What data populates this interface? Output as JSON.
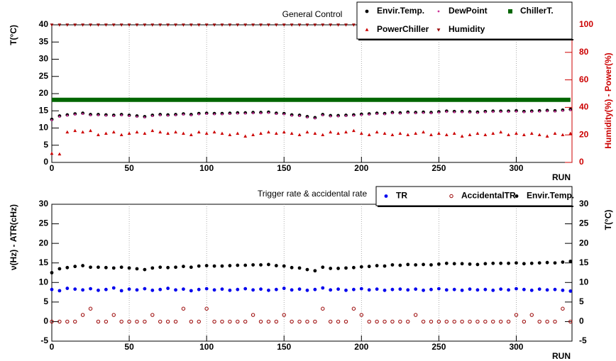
{
  "chart_data": [
    {
      "type": "scatter",
      "title": "General Control",
      "xlabel": "RUN",
      "ylabel": "T(°C)",
      "y2label": "Humidity(%) - Power(%)",
      "y2color": "#cc0000",
      "x": [
        0,
        5,
        10,
        15,
        20,
        25,
        30,
        35,
        40,
        45,
        50,
        55,
        60,
        65,
        70,
        75,
        80,
        85,
        90,
        95,
        100,
        105,
        110,
        115,
        120,
        125,
        130,
        135,
        140,
        145,
        150,
        155,
        160,
        165,
        170,
        175,
        180,
        185,
        190,
        195,
        200,
        205,
        210,
        215,
        220,
        225,
        230,
        235,
        240,
        245,
        250,
        255,
        260,
        265,
        270,
        275,
        280,
        285,
        290,
        295,
        300,
        305,
        310,
        315,
        320,
        325,
        330,
        335
      ],
      "xlim": [
        0,
        336
      ],
      "xticks": [
        0,
        50,
        100,
        150,
        200,
        250,
        300
      ],
      "ylim": [
        0,
        40
      ],
      "yticks": [
        0,
        5,
        10,
        15,
        20,
        25,
        30,
        35,
        40
      ],
      "y2lim": [
        0,
        100
      ],
      "y2ticks": [
        0,
        20,
        40,
        60,
        80,
        100
      ],
      "grid": true,
      "series": [
        {
          "name": "Envir.Temp.",
          "color": "#000000",
          "marker": "circle",
          "values": [
            12.5,
            13.5,
            13.8,
            14.1,
            14.3,
            13.9,
            13.9,
            13.8,
            13.7,
            13.9,
            13.7,
            13.5,
            13.3,
            13.7,
            13.9,
            13.8,
            13.9,
            14.1,
            13.9,
            14.2,
            14.3,
            14.2,
            14.2,
            14.3,
            14.4,
            14.4,
            14.5,
            14.5,
            14.6,
            14.3,
            14.2,
            13.8,
            13.7,
            13.3,
            13.0,
            13.9,
            13.6,
            13.6,
            13.7,
            13.8,
            14.0,
            14.1,
            14.3,
            14.2,
            14.5,
            14.4,
            14.6,
            14.5,
            14.6,
            14.5,
            14.7,
            14.9,
            14.8,
            14.8,
            14.7,
            14.6,
            14.8,
            14.9,
            14.9,
            14.9,
            15.0,
            14.8,
            14.9,
            15.0,
            15.1,
            15.0,
            15.2,
            15.4
          ]
        },
        {
          "name": "DewPoint",
          "color": "#cc3399",
          "marker": "dot",
          "values": [
            12.3,
            13.3,
            13.6,
            13.9,
            14.1,
            13.7,
            13.7,
            13.6,
            13.5,
            13.7,
            13.5,
            13.3,
            13.1,
            13.5,
            13.7,
            13.6,
            13.7,
            13.9,
            13.7,
            14.0,
            14.1,
            14.0,
            14.0,
            14.1,
            14.2,
            14.2,
            14.3,
            14.3,
            14.4,
            14.1,
            14.0,
            13.6,
            13.5,
            13.1,
            12.8,
            13.7,
            13.4,
            13.4,
            13.5,
            13.6,
            13.8,
            13.9,
            14.1,
            14.0,
            14.3,
            14.2,
            14.4,
            14.3,
            14.4,
            14.3,
            14.5,
            14.7,
            14.6,
            14.6,
            14.5,
            14.4,
            14.6,
            14.7,
            14.7,
            14.7,
            14.8,
            14.6,
            14.7,
            14.8,
            14.9,
            14.8,
            15.0,
            15.2
          ]
        },
        {
          "name": "ChillerT.",
          "color": "#006600",
          "marker": "square",
          "connect": true,
          "values": [
            18.2,
            18.2,
            18.2,
            18.2,
            18.2,
            18.2,
            18.2,
            18.2,
            18.2,
            18.2,
            18.2,
            18.2,
            18.2,
            18.2,
            18.2,
            18.2,
            18.2,
            18.2,
            18.2,
            18.2,
            18.2,
            18.2,
            18.2,
            18.2,
            18.2,
            18.2,
            18.2,
            18.2,
            18.2,
            18.2,
            18.2,
            18.2,
            18.2,
            18.2,
            18.2,
            18.2,
            18.2,
            18.2,
            18.2,
            18.2,
            18.2,
            18.2,
            18.2,
            18.2,
            18.2,
            18.2,
            18.2,
            18.2,
            18.2,
            18.2,
            18.2,
            18.2,
            18.2,
            18.2,
            18.2,
            18.2,
            18.2,
            18.2,
            18.2,
            18.2,
            18.2,
            18.2,
            18.2,
            18.2,
            18.2,
            18.2,
            18.2,
            18.2
          ]
        },
        {
          "name": "PowerChiller",
          "color": "#cc0000",
          "marker": "triangle-up",
          "axis": "y2",
          "values": [
            6.5,
            6.0,
            22,
            23,
            22,
            23,
            20,
            21,
            22,
            20,
            21,
            22,
            21,
            23,
            22,
            21,
            22,
            21,
            20,
            22,
            21,
            22,
            21,
            20,
            21,
            19,
            20,
            21,
            22,
            21,
            22,
            21,
            20,
            22,
            21,
            20,
            22,
            21,
            22,
            23,
            21,
            20,
            22,
            21,
            20,
            21,
            20,
            21,
            22,
            20,
            21,
            20,
            21,
            19,
            20,
            21,
            20,
            21,
            22,
            20,
            21,
            20,
            21,
            20,
            19,
            21,
            20,
            21
          ]
        },
        {
          "name": "Humidity",
          "color": "#990000",
          "marker": "triangle-down",
          "axis": "y2",
          "values": [
            100,
            100,
            100,
            100,
            100,
            100,
            100,
            100,
            100,
            100,
            100,
            100,
            100,
            100,
            100,
            100,
            100,
            100,
            100,
            100,
            100,
            100,
            100,
            100,
            100,
            100,
            100,
            100,
            100,
            100,
            100,
            100,
            100,
            100,
            100,
            100,
            100,
            100,
            100,
            100,
            100,
            100,
            100,
            100,
            100,
            100,
            100,
            100,
            100,
            100,
            100,
            100,
            100,
            100,
            100,
            100,
            100,
            100,
            100,
            100,
            100,
            100,
            100,
            100,
            100,
            100,
            100,
            100
          ]
        }
      ]
    },
    {
      "type": "scatter",
      "title": "Trigger rate & accidental rate",
      "xlabel": "RUN",
      "ylabel": "ν(Hz) - ATR(cHz)",
      "y2label": "T(°C)",
      "y2color": "#000000",
      "x": [
        0,
        5,
        10,
        15,
        20,
        25,
        30,
        35,
        40,
        45,
        50,
        55,
        60,
        65,
        70,
        75,
        80,
        85,
        90,
        95,
        100,
        105,
        110,
        115,
        120,
        125,
        130,
        135,
        140,
        145,
        150,
        155,
        160,
        165,
        170,
        175,
        180,
        185,
        190,
        195,
        200,
        205,
        210,
        215,
        220,
        225,
        230,
        235,
        240,
        245,
        250,
        255,
        260,
        265,
        270,
        275,
        280,
        285,
        290,
        295,
        300,
        305,
        310,
        315,
        320,
        325,
        330,
        335
      ],
      "xlim": [
        0,
        336
      ],
      "xticks": [
        0,
        50,
        100,
        150,
        200,
        250,
        300
      ],
      "ylim": [
        -5,
        30
      ],
      "yticks": [
        -5,
        0,
        5,
        10,
        15,
        20,
        25,
        30
      ],
      "y2lim": [
        -5,
        30
      ],
      "y2ticks": [
        -5,
        0,
        5,
        10,
        15,
        20,
        25,
        30
      ],
      "grid": true,
      "series": [
        {
          "name": "TR",
          "color": "#0000ee",
          "marker": "circle",
          "values": [
            8.2,
            7.9,
            8.5,
            8.3,
            8.1,
            8.4,
            8.0,
            8.2,
            8.6,
            7.9,
            8.3,
            8.1,
            8.4,
            8.0,
            8.2,
            8.5,
            8.1,
            8.3,
            7.9,
            8.2,
            8.4,
            8.1,
            8.3,
            8.0,
            8.2,
            8.4,
            8.1,
            8.3,
            8.0,
            8.2,
            8.5,
            8.1,
            8.3,
            8.0,
            8.2,
            8.6,
            8.1,
            8.3,
            8.0,
            8.2,
            8.4,
            8.1,
            8.3,
            8.0,
            8.2,
            8.3,
            8.1,
            8.3,
            8.0,
            8.2,
            8.4,
            8.1,
            8.2,
            8.0,
            8.3,
            8.1,
            8.2,
            8.0,
            8.3,
            8.1,
            8.4,
            8.2,
            8.0,
            8.3,
            8.1,
            8.2,
            8.0,
            7.8
          ]
        },
        {
          "name": "AccidentalTR",
          "color": "#990000",
          "marker": "open-circle",
          "values": [
            0,
            0,
            0,
            0,
            1.7,
            3.3,
            0,
            0,
            1.7,
            0,
            0,
            0,
            0,
            1.7,
            0,
            0,
            0,
            3.3,
            0,
            0,
            3.3,
            0,
            0,
            0,
            0,
            0,
            1.7,
            0,
            0,
            0,
            1.7,
            0,
            0,
            0,
            0,
            3.3,
            0,
            0,
            0,
            3.3,
            1.7,
            0,
            0,
            0,
            0,
            0,
            0,
            1.7,
            0,
            0,
            0,
            0,
            0,
            0,
            0,
            0,
            0,
            0,
            0,
            0,
            1.7,
            0,
            1.7,
            0,
            0,
            0,
            3.3,
            0
          ]
        },
        {
          "name": "Envir.Temp.",
          "color": "#000000",
          "marker": "circle",
          "axis": "y2",
          "values": [
            12.5,
            13.5,
            13.8,
            14.1,
            14.3,
            13.9,
            13.9,
            13.8,
            13.7,
            13.9,
            13.7,
            13.5,
            13.3,
            13.7,
            13.9,
            13.8,
            13.9,
            14.1,
            13.9,
            14.2,
            14.3,
            14.2,
            14.2,
            14.3,
            14.4,
            14.4,
            14.5,
            14.5,
            14.6,
            14.3,
            14.2,
            13.8,
            13.7,
            13.3,
            13.0,
            13.9,
            13.6,
            13.6,
            13.7,
            13.8,
            14.0,
            14.1,
            14.3,
            14.2,
            14.5,
            14.4,
            14.6,
            14.5,
            14.6,
            14.5,
            14.7,
            14.9,
            14.8,
            14.8,
            14.7,
            14.6,
            14.8,
            14.9,
            14.9,
            14.9,
            15.0,
            14.8,
            14.9,
            15.0,
            15.1,
            15.0,
            15.2,
            15.4
          ]
        }
      ]
    }
  ]
}
